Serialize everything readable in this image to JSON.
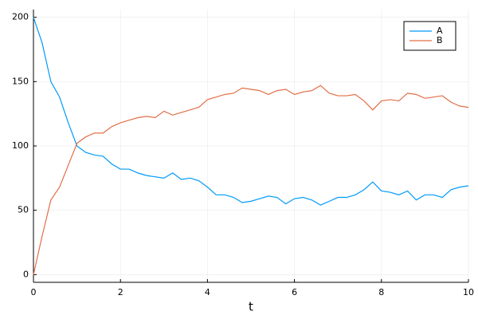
{
  "chart_data": {
    "type": "line",
    "xlabel": "t",
    "x": [
      0,
      0.2,
      0.4,
      0.6,
      0.8,
      1.0,
      1.2,
      1.4,
      1.6,
      1.8,
      2.0,
      2.2,
      2.4,
      2.6,
      2.8,
      3.0,
      3.2,
      3.4,
      3.6,
      3.8,
      4.0,
      4.2,
      4.4,
      4.6,
      4.8,
      5.0,
      5.2,
      5.4,
      5.6,
      5.8,
      6.0,
      6.2,
      6.4,
      6.6,
      6.8,
      7.0,
      7.2,
      7.4,
      7.6,
      7.8,
      8.0,
      8.2,
      8.4,
      8.6,
      8.8,
      9.0,
      9.2,
      9.4,
      9.6,
      9.8,
      10.0
    ],
    "series": [
      {
        "name": "A",
        "color": "#009af9",
        "values": [
          200,
          180,
          150,
          138,
          118,
          100,
          95,
          93,
          92,
          86,
          82,
          82,
          79,
          77,
          76,
          75,
          79,
          74,
          75,
          73,
          68,
          62,
          62,
          60,
          56,
          57,
          59,
          61,
          60,
          55,
          59,
          60,
          58,
          54,
          57,
          60,
          60,
          62,
          66,
          72,
          65,
          64,
          62,
          65,
          58,
          62,
          62,
          60,
          66,
          68,
          69
        ]
      },
      {
        "name": "B",
        "color": "#e26f46",
        "values": [
          0,
          30,
          58,
          68,
          85,
          102,
          107,
          110,
          110,
          115,
          118,
          120,
          122,
          123,
          122,
          127,
          124,
          126,
          128,
          130,
          136,
          138,
          140,
          141,
          145,
          144,
          143,
          140,
          143,
          144,
          140,
          142,
          143,
          147,
          141,
          139,
          139,
          140,
          135,
          128,
          135,
          136,
          135,
          141,
          140,
          137,
          138,
          139,
          134,
          131,
          130
        ]
      }
    ],
    "xlim": [
      0,
      10
    ],
    "ylim": [
      -6,
      206
    ],
    "xticks": [
      0,
      2,
      4,
      6,
      8,
      10
    ],
    "yticks": [
      0,
      50,
      100,
      150,
      200
    ],
    "grid": true,
    "legend": "top-right"
  }
}
